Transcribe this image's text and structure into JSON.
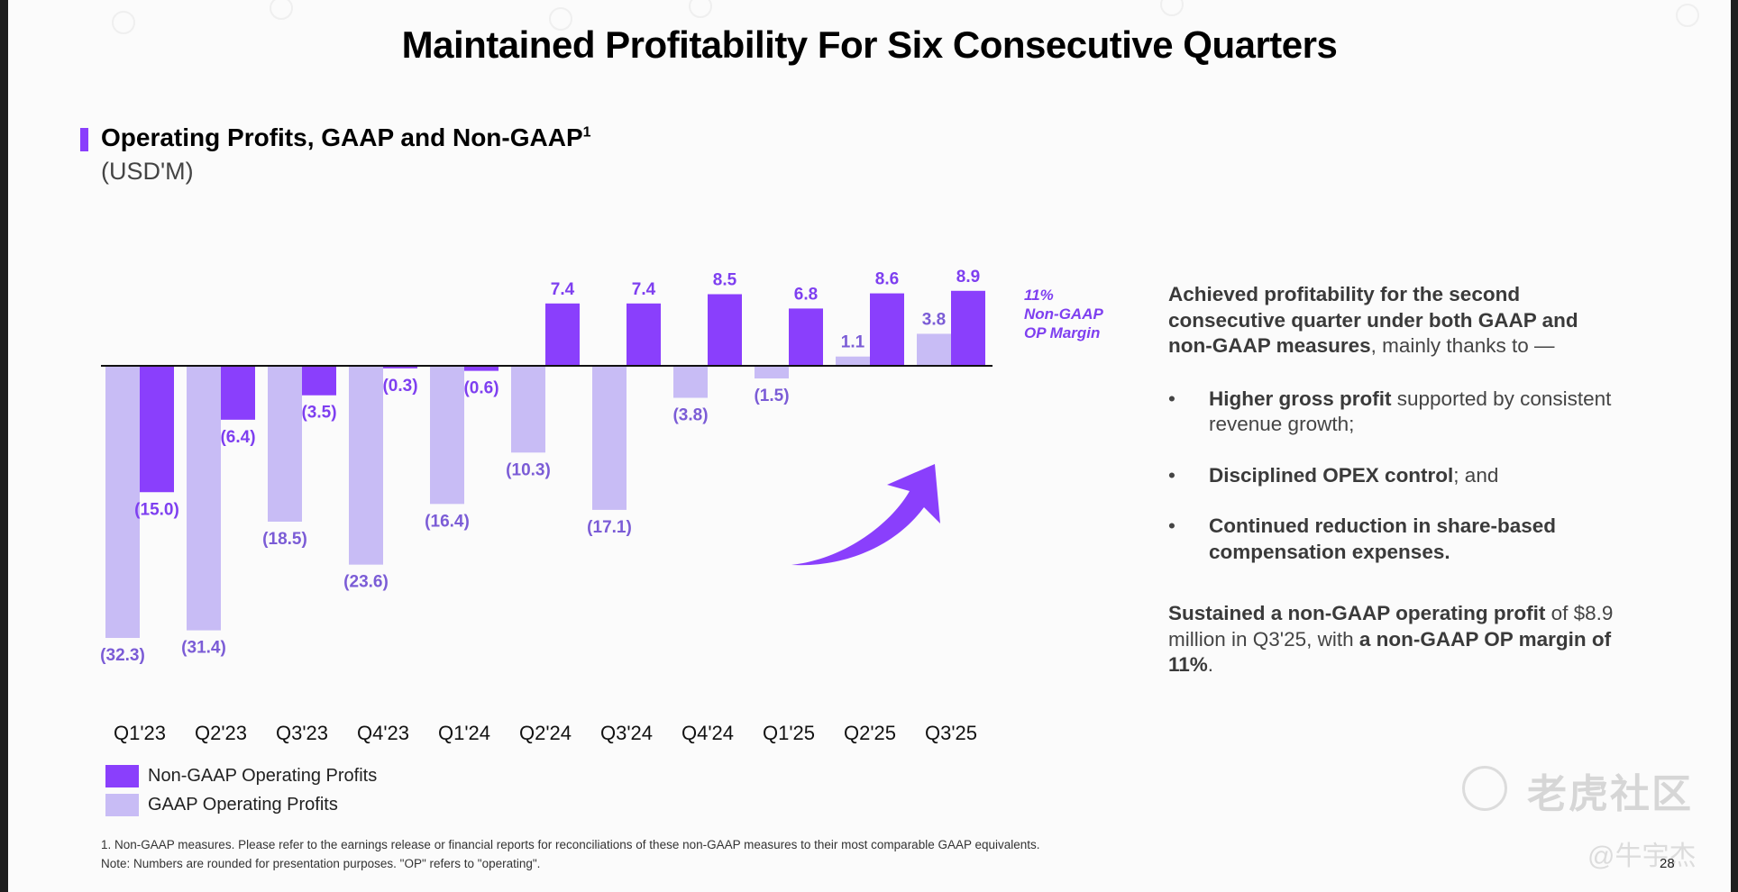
{
  "slide": {
    "title": "Maintained Profitability For Six Consecutive Quarters",
    "section_title": "Operating Profits, GAAP and Non-GAAP",
    "section_title_sup": "1",
    "section_unit": "(USD'M)",
    "margin_note": [
      "11%",
      "Non-GAAP",
      "OP Margin"
    ],
    "page_number": "28",
    "watermark": "老虎社区",
    "watermark_author": "@牛宇杰"
  },
  "commentary": {
    "intro_bold": "Achieved profitability for the second consecutive quarter under both GAAP and non-GAAP measures",
    "intro_rest": ", mainly thanks to —",
    "bullets": [
      {
        "bold": "Higher gross profit",
        "rest": " supported by consistent revenue growth;"
      },
      {
        "bold": "Disciplined OPEX control",
        "rest": "; and"
      },
      {
        "bold": "Continued reduction in share-based compensation expenses.",
        "rest": ""
      }
    ],
    "closing_bold1": "Sustained a non-GAAP operating profit",
    "closing_mid": " of $8.9 million in Q3'25, with ",
    "closing_bold2": "a non-GAAP OP margin of 11%",
    "closing_end": "."
  },
  "footnotes": [
    "1. Non-GAAP measures. Please refer to the earnings release or financial reports for reconciliations of these non-GAAP measures to their most comparable GAAP equivalents.",
    "Note: Numbers are rounded for presentation purposes. \"OP\" refers to \"operating\"."
  ],
  "colors": {
    "non_gaap": "#8a3ffc",
    "gaap": "#c8bcf5",
    "label": "#7b5cd6"
  },
  "chart_data": {
    "type": "bar",
    "title": "Operating Profits, GAAP and Non-GAAP",
    "xlabel": "",
    "ylabel": "USD'M",
    "categories": [
      "Q1'23",
      "Q2'23",
      "Q3'23",
      "Q4'23",
      "Q1'24",
      "Q2'24",
      "Q3'24",
      "Q4'24",
      "Q1'25",
      "Q2'25",
      "Q3'25"
    ],
    "series": [
      {
        "name": "GAAP Operating Profits",
        "color": "#c8bcf5",
        "values": [
          -32.3,
          -31.4,
          -18.5,
          -23.6,
          -16.4,
          -10.3,
          -17.1,
          -3.8,
          -1.5,
          1.1,
          3.8
        ],
        "labels": [
          "(32.3)",
          "(31.4)",
          "(18.5)",
          "(23.6)",
          "(16.4)",
          "(10.3)",
          "(17.1)",
          "(3.8)",
          "(1.5)",
          "1.1",
          "3.8"
        ]
      },
      {
        "name": "Non-GAAP Operating Profits",
        "color": "#8a3ffc",
        "values": [
          -15.0,
          -6.4,
          -3.5,
          -0.3,
          -0.6,
          7.4,
          7.4,
          8.5,
          6.8,
          8.6,
          8.9
        ],
        "labels": [
          "(15.0)",
          "(6.4)",
          "(3.5)",
          "(0.3)",
          "(0.6)",
          "7.4",
          "7.4",
          "8.5",
          "6.8",
          "8.6",
          "8.9"
        ]
      }
    ],
    "ylim": [
      -35,
      10
    ],
    "grid": false,
    "legend_position": "bottom-left",
    "annotations": [
      "11% Non-GAAP OP Margin"
    ]
  }
}
